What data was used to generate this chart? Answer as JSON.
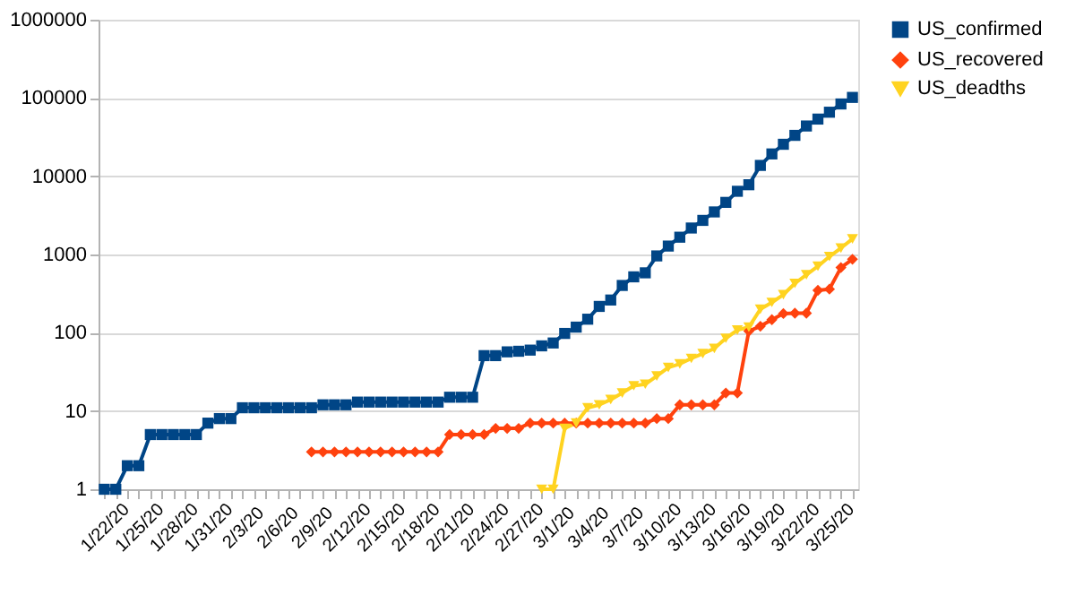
{
  "chart_data": {
    "type": "line",
    "log": true,
    "grid": "y",
    "legend": "right",
    "categories": [
      "1/22/20",
      null,
      null,
      "1/25/20",
      null,
      null,
      "1/28/20",
      null,
      null,
      "1/31/20",
      null,
      null,
      "2/3/20",
      null,
      null,
      "2/6/20",
      null,
      null,
      "2/9/20",
      null,
      null,
      "2/12/20",
      null,
      null,
      "2/15/20",
      null,
      null,
      "2/18/20",
      null,
      null,
      "2/21/20",
      null,
      null,
      "2/24/20",
      null,
      null,
      "2/27/20",
      null,
      null,
      "3/1/20",
      null,
      null,
      "3/4/20",
      null,
      null,
      "3/7/20",
      null,
      null,
      "3/10/20",
      null,
      null,
      "3/13/20",
      null,
      null,
      "3/16/20",
      null,
      null,
      "3/19/20",
      null,
      null,
      "3/22/20",
      null,
      null,
      "3/25/20",
      null,
      null
    ],
    "ylim": [
      1,
      1000000
    ],
    "yticks": [
      1,
      10,
      100,
      1000,
      10000,
      100000,
      1000000
    ],
    "series": [
      {
        "name": "US_confirmed",
        "color": "#004586",
        "marker": "square",
        "values": [
          1,
          1,
          2,
          2,
          5,
          5,
          5,
          5,
          5,
          7,
          8,
          8,
          11,
          11,
          11,
          11,
          11,
          11,
          11,
          12,
          12,
          12,
          13,
          13,
          13,
          13,
          13,
          13,
          13,
          13,
          15,
          15,
          15,
          51,
          51,
          57,
          58,
          60,
          68,
          74,
          98,
          118,
          149,
          217,
          262,
          402,
          518,
          583,
          959,
          1281,
          1663,
          2179,
          2727,
          3499,
          4632,
          6421,
          7783,
          13747,
          19273,
          25600,
          33276,
          43847,
          53740,
          65778,
          83836,
          101657
        ]
      },
      {
        "name": "US_recovered",
        "color": "#ff420e",
        "marker": "diamond",
        "values": [
          null,
          null,
          null,
          null,
          null,
          null,
          null,
          null,
          null,
          null,
          null,
          null,
          null,
          null,
          null,
          null,
          null,
          null,
          3,
          3,
          3,
          3,
          3,
          3,
          3,
          3,
          3,
          3,
          3,
          3,
          5,
          5,
          5,
          5,
          6,
          6,
          6,
          7,
          7,
          7,
          7,
          7,
          7,
          7,
          7,
          7,
          7,
          7,
          8,
          8,
          12,
          12,
          12,
          12,
          17,
          17,
          105,
          121,
          147,
          176,
          178,
          178,
          348,
          361,
          681,
          869
        ]
      },
      {
        "name": "US_deadths",
        "color": "#ffd320",
        "marker": "triangle",
        "values": [
          null,
          null,
          null,
          null,
          null,
          null,
          null,
          null,
          null,
          null,
          null,
          null,
          null,
          null,
          null,
          null,
          null,
          null,
          null,
          null,
          null,
          null,
          null,
          null,
          null,
          null,
          null,
          null,
          null,
          null,
          null,
          null,
          null,
          null,
          null,
          null,
          null,
          null,
          1,
          1,
          6,
          7,
          11,
          12,
          14,
          17,
          21,
          22,
          28,
          36,
          40,
          47,
          54,
          63,
          85,
          108,
          118,
          200,
          244,
          307,
          427,
          552,
          706,
          942,
          1209,
          1581
        ]
      }
    ]
  }
}
